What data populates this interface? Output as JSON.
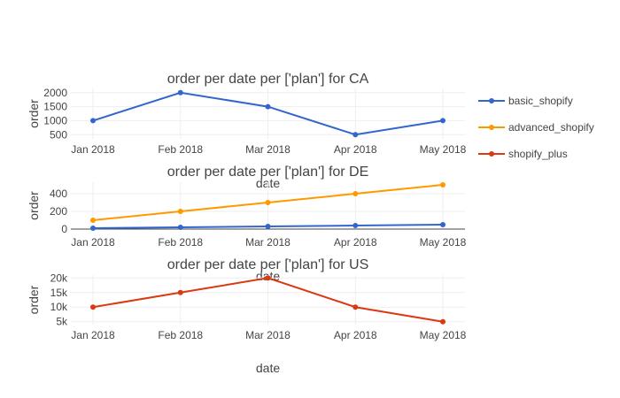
{
  "chart_data": {
    "type": "line",
    "legend_placement": "top-right",
    "grid": true,
    "legend": [
      {
        "name": "basic_shopify",
        "color": "#3366cc"
      },
      {
        "name": "advanced_shopify",
        "color": "#ff9900"
      },
      {
        "name": "shopify_plus",
        "color": "#dc3912"
      }
    ],
    "x_ticks": [
      "Jan 2018",
      "Feb 2018",
      "Mar 2018",
      "Apr 2018",
      "May 2018"
    ],
    "subplots": [
      {
        "title": "order per date per ['plan'] for CA",
        "xlabel": "date",
        "ylabel": "order",
        "ylim": [
          350,
          2150
        ],
        "y_ticks": [
          500,
          1000,
          1500,
          2000
        ],
        "y_tick_labels": [
          "500",
          "1000",
          "1500",
          "2000"
        ],
        "zero_line": false,
        "series": [
          {
            "name": "basic_shopify",
            "color": "#3366cc",
            "values": [
              1000,
              2000,
              1500,
              500,
              1000
            ]
          }
        ]
      },
      {
        "title": "order per date per ['plan'] for DE",
        "xlabel": "date",
        "ylabel": "order",
        "ylim": [
          0,
          530
        ],
        "y_ticks": [
          0,
          200,
          400
        ],
        "y_tick_labels": [
          "0",
          "200",
          "400"
        ],
        "zero_line": true,
        "series": [
          {
            "name": "basic_shopify",
            "color": "#3366cc",
            "values": [
              10,
              20,
              30,
              40,
              50
            ]
          },
          {
            "name": "advanced_shopify",
            "color": "#ff9900",
            "values": [
              100,
              200,
              300,
              400,
              500
            ]
          }
        ]
      },
      {
        "title": "order per date per ['plan'] for US",
        "xlabel": "date",
        "ylabel": "order",
        "ylim": [
          4000,
          21000
        ],
        "y_ticks": [
          5000,
          10000,
          15000,
          20000
        ],
        "y_tick_labels": [
          "5k",
          "10k",
          "15k",
          "20k"
        ],
        "zero_line": false,
        "series": [
          {
            "name": "shopify_plus",
            "color": "#dc3912",
            "values": [
              10000,
              15000,
              20000,
              10000,
              5000
            ]
          }
        ]
      }
    ]
  }
}
